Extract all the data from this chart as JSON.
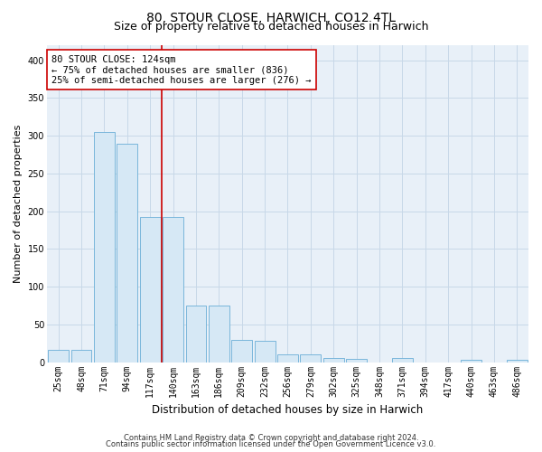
{
  "title": "80, STOUR CLOSE, HARWICH, CO12 4TL",
  "subtitle": "Size of property relative to detached houses in Harwich",
  "xlabel": "Distribution of detached houses by size in Harwich",
  "ylabel": "Number of detached properties",
  "categories": [
    "25sqm",
    "48sqm",
    "71sqm",
    "94sqm",
    "117sqm",
    "140sqm",
    "163sqm",
    "186sqm",
    "209sqm",
    "232sqm",
    "256sqm",
    "279sqm",
    "302sqm",
    "325sqm",
    "348sqm",
    "371sqm",
    "394sqm",
    "417sqm",
    "440sqm",
    "463sqm",
    "486sqm"
  ],
  "values": [
    16,
    16,
    305,
    290,
    192,
    192,
    75,
    75,
    30,
    28,
    10,
    10,
    5,
    4,
    0,
    5,
    0,
    0,
    3,
    0,
    3
  ],
  "bar_color": "#d6e8f5",
  "bar_edge_color": "#6aaed6",
  "vline_color": "#cc0000",
  "vline_x": 4.5,
  "annotation_text": "80 STOUR CLOSE: 124sqm\n← 75% of detached houses are smaller (836)\n25% of semi-detached houses are larger (276) →",
  "annotation_box_facecolor": "#ffffff",
  "annotation_box_edgecolor": "#cc0000",
  "ylim": [
    0,
    420
  ],
  "yticks": [
    0,
    50,
    100,
    150,
    200,
    250,
    300,
    350,
    400
  ],
  "grid_color": "#c8d8e8",
  "plot_bg_color": "#e8f0f8",
  "footer_line1": "Contains HM Land Registry data © Crown copyright and database right 2024.",
  "footer_line2": "Contains public sector information licensed under the Open Government Licence v3.0.",
  "title_fontsize": 10,
  "subtitle_fontsize": 9,
  "xlabel_fontsize": 8.5,
  "ylabel_fontsize": 8,
  "tick_fontsize": 7,
  "annotation_fontsize": 7.5,
  "footer_fontsize": 6
}
